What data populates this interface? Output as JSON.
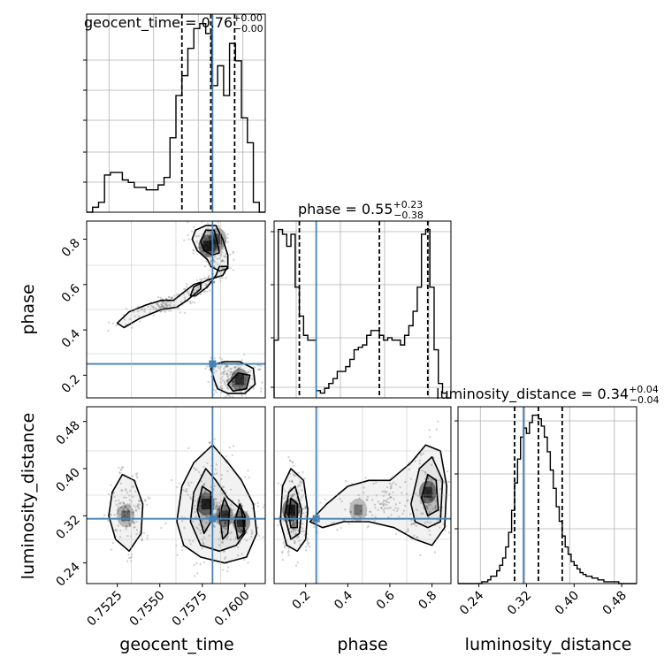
{
  "chart_data": [
    {
      "type": "histogram",
      "panel": "geocent_time marginal",
      "title_param": "geocent_time",
      "title_median": "0.76",
      "title_plus": "+0.00",
      "title_minus": "−0.00",
      "x_range": [
        0.7507,
        0.7612
      ],
      "grid": true,
      "quantiles": [
        0.7563,
        0.758,
        0.7594
      ],
      "truth": 0.7581,
      "bins": [
        0.7507,
        0.75105,
        0.7514,
        0.75175,
        0.7521,
        0.75245,
        0.7528,
        0.75315,
        0.7535,
        0.75385,
        0.7542,
        0.75455,
        0.7549,
        0.75525,
        0.7556,
        0.75595,
        0.7563,
        0.75665,
        0.757,
        0.75735,
        0.7577,
        0.75805,
        0.7584,
        0.75875,
        0.7591,
        0.75945,
        0.7598,
        0.76015,
        0.7605,
        0.76085,
        0.7612
      ],
      "counts": [
        0,
        2,
        4,
        15,
        16,
        16,
        13,
        12,
        10,
        10,
        9,
        9,
        11,
        14,
        30,
        47,
        55,
        66,
        74,
        76,
        72,
        51,
        59,
        47,
        68,
        61,
        38,
        28,
        4,
        0
      ]
    },
    {
      "type": "histogram",
      "panel": "phase marginal",
      "title_param": "phase",
      "title_median": "0.55",
      "title_plus": "+0.23",
      "title_minus": "−0.38",
      "x_range": [
        0.05,
        0.89
      ],
      "grid": true,
      "quantiles": [
        0.17,
        0.55,
        0.78
      ],
      "truth": 0.25,
      "bins": [
        0.05,
        0.07,
        0.09,
        0.11,
        0.13,
        0.15,
        0.17,
        0.19,
        0.21,
        0.23,
        0.25,
        0.27,
        0.29,
        0.31,
        0.33,
        0.35,
        0.37,
        0.39,
        0.41,
        0.43,
        0.45,
        0.47,
        0.49,
        0.51,
        0.53,
        0.55,
        0.57,
        0.59,
        0.61,
        0.63,
        0.65,
        0.67,
        0.69,
        0.71,
        0.73,
        0.75,
        0.77,
        0.79,
        0.81,
        0.83,
        0.85,
        0.87,
        0.89
      ],
      "counts": [
        24,
        70,
        68,
        63,
        68,
        46,
        34,
        26,
        24,
        24,
        3,
        2,
        4,
        6,
        8,
        11,
        11,
        13,
        16,
        20,
        21,
        22,
        26,
        28,
        28,
        26,
        24,
        25,
        24,
        24,
        22,
        26,
        30,
        36,
        46,
        68,
        70,
        46,
        20,
        6,
        2,
        0
      ]
    },
    {
      "type": "histogram",
      "panel": "luminosity_distance marginal",
      "title_param": "luminosity_distance",
      "title_median": "0.34",
      "title_plus": "+0.04",
      "title_minus": "−0.04",
      "x_range": [
        0.205,
        0.505
      ],
      "grid": true,
      "quantiles": [
        0.3,
        0.34,
        0.38
      ],
      "truth": 0.315,
      "bins": [
        0.205,
        0.21,
        0.215,
        0.22,
        0.225,
        0.23,
        0.235,
        0.24,
        0.245,
        0.25,
        0.255,
        0.26,
        0.265,
        0.27,
        0.275,
        0.28,
        0.285,
        0.29,
        0.295,
        0.3,
        0.305,
        0.31,
        0.315,
        0.32,
        0.325,
        0.33,
        0.335,
        0.34,
        0.345,
        0.35,
        0.355,
        0.36,
        0.365,
        0.37,
        0.375,
        0.38,
        0.385,
        0.39,
        0.395,
        0.4,
        0.405,
        0.41,
        0.415,
        0.42,
        0.425,
        0.43,
        0.435,
        0.44,
        0.445,
        0.45,
        0.455,
        0.46,
        0.465,
        0.47,
        0.475,
        0.48,
        0.485,
        0.49,
        0.495,
        0.5,
        0.505
      ],
      "counts": [
        0,
        0,
        0,
        0,
        0,
        0,
        0,
        0,
        1,
        1,
        2,
        4,
        4,
        7,
        10,
        14,
        20,
        28,
        40,
        55,
        68,
        80,
        85,
        82,
        88,
        92,
        92,
        90,
        86,
        80,
        72,
        62,
        52,
        42,
        34,
        26,
        20,
        16,
        12,
        10,
        8,
        6,
        5,
        4,
        4,
        3,
        3,
        2,
        2,
        1,
        1,
        1,
        1,
        1,
        0,
        0,
        0,
        0,
        0,
        0
      ]
    },
    {
      "type": "scatter",
      "panel": "phase vs geocent_time",
      "x_range": [
        0.7507,
        0.7612
      ],
      "y_range": [
        0.1,
        0.88
      ],
      "yticks": [
        "0.2",
        "0.4",
        "0.6",
        "0.8"
      ],
      "truth_x": 0.7581,
      "truth_y": 0.25,
      "grid": true,
      "contours": [
        {
          "level": "outer",
          "points": [
            [
              0.7577,
              0.86
            ],
            [
              0.7583,
              0.86
            ],
            [
              0.7587,
              0.8
            ],
            [
              0.759,
              0.73
            ],
            [
              0.759,
              0.67
            ],
            [
              0.7585,
              0.66
            ],
            [
              0.758,
              0.68
            ],
            [
              0.7578,
              0.71
            ],
            [
              0.7572,
              0.75
            ],
            [
              0.7569,
              0.8
            ],
            [
              0.7571,
              0.84
            ]
          ]
        },
        {
          "level": "inner",
          "points": [
            [
              0.7577,
              0.84
            ],
            [
              0.7582,
              0.84
            ],
            [
              0.7584,
              0.78
            ],
            [
              0.7585,
              0.74
            ],
            [
              0.7581,
              0.73
            ],
            [
              0.7576,
              0.75
            ],
            [
              0.7574,
              0.79
            ]
          ]
        },
        {
          "level": "middle",
          "points": [
            [
              0.7585,
              0.68
            ],
            [
              0.759,
              0.68
            ],
            [
              0.7587,
              0.64
            ],
            [
              0.7578,
              0.62
            ],
            [
              0.757,
              0.59
            ],
            [
              0.7568,
              0.55
            ],
            [
              0.7571,
              0.55
            ],
            [
              0.7578,
              0.59
            ],
            [
              0.7583,
              0.64
            ]
          ]
        },
        {
          "level": "outer",
          "points": [
            [
              0.7525,
              0.43
            ],
            [
              0.7532,
              0.48
            ],
            [
              0.7542,
              0.51
            ],
            [
              0.7551,
              0.53
            ],
            [
              0.7558,
              0.53
            ],
            [
              0.7563,
              0.56
            ],
            [
              0.757,
              0.6
            ],
            [
              0.7574,
              0.61
            ],
            [
              0.7574,
              0.58
            ],
            [
              0.7566,
              0.53
            ],
            [
              0.756,
              0.5
            ],
            [
              0.7551,
              0.49
            ],
            [
              0.7538,
              0.45
            ],
            [
              0.7529,
              0.41
            ]
          ]
        },
        {
          "level": "outer",
          "points": [
            [
              0.758,
              0.23
            ],
            [
              0.7583,
              0.25
            ],
            [
              0.7588,
              0.26
            ],
            [
              0.7597,
              0.26
            ],
            [
              0.7605,
              0.23
            ],
            [
              0.7606,
              0.16
            ],
            [
              0.76,
              0.12
            ],
            [
              0.759,
              0.12
            ],
            [
              0.7584,
              0.14
            ],
            [
              0.7582,
              0.18
            ]
          ]
        },
        {
          "level": "inner",
          "points": [
            [
              0.759,
              0.16
            ],
            [
              0.7596,
              0.21
            ],
            [
              0.7603,
              0.2
            ],
            [
              0.7601,
              0.14
            ],
            [
              0.7593,
              0.13
            ]
          ]
        }
      ],
      "density_peaks": [
        [
          0.7578,
          0.77,
          0.9
        ],
        [
          0.7597,
          0.18,
          0.7
        ],
        [
          0.7584,
          0.8,
          0.5
        ]
      ]
    },
    {
      "type": "scatter",
      "panel": "luminosity_distance vs geocent_time",
      "x_range": [
        0.7507,
        0.7612
      ],
      "y_range": [
        0.205,
        0.505
      ],
      "xticks": [
        "0.7525",
        "0.7550",
        "0.7575",
        "0.7600"
      ],
      "yticks": [
        "0.24",
        "0.32",
        "0.40",
        "0.48"
      ],
      "truth_x": 0.7581,
      "truth_y": 0.315,
      "grid": true,
      "contours": [
        {
          "level": "outer",
          "points": [
            [
              0.752,
              0.32
            ],
            [
              0.7522,
              0.36
            ],
            [
              0.7528,
              0.39
            ],
            [
              0.7535,
              0.38
            ],
            [
              0.754,
              0.34
            ],
            [
              0.7539,
              0.29
            ],
            [
              0.7532,
              0.26
            ],
            [
              0.7524,
              0.28
            ]
          ]
        },
        {
          "level": "outer",
          "points": [
            [
              0.756,
              0.31
            ],
            [
              0.7563,
              0.37
            ],
            [
              0.757,
              0.41
            ],
            [
              0.7581,
              0.44
            ],
            [
              0.759,
              0.41
            ],
            [
              0.7598,
              0.38
            ],
            [
              0.7605,
              0.34
            ],
            [
              0.7607,
              0.29
            ],
            [
              0.7601,
              0.25
            ],
            [
              0.7588,
              0.24
            ],
            [
              0.7574,
              0.25
            ],
            [
              0.7564,
              0.27
            ]
          ]
        },
        {
          "level": "middle",
          "points": [
            [
              0.7568,
              0.31
            ],
            [
              0.757,
              0.36
            ],
            [
              0.7577,
              0.4
            ],
            [
              0.7583,
              0.38
            ],
            [
              0.759,
              0.35
            ],
            [
              0.7598,
              0.33
            ],
            [
              0.76,
              0.29
            ],
            [
              0.7595,
              0.27
            ],
            [
              0.7585,
              0.26
            ],
            [
              0.7574,
              0.27
            ]
          ]
        },
        {
          "level": "inner",
          "points": [
            [
              0.7572,
              0.33
            ],
            [
              0.7575,
              0.37
            ],
            [
              0.758,
              0.36
            ],
            [
              0.758,
              0.31
            ],
            [
              0.7576,
              0.29
            ]
          ]
        },
        {
          "level": "inner",
          "points": [
            [
              0.7585,
              0.32
            ],
            [
              0.7588,
              0.35
            ],
            [
              0.7591,
              0.33
            ],
            [
              0.759,
              0.29
            ],
            [
              0.7587,
              0.28
            ]
          ]
        },
        {
          "level": "inner",
          "points": [
            [
              0.7594,
              0.31
            ],
            [
              0.7597,
              0.34
            ],
            [
              0.76,
              0.32
            ],
            [
              0.7599,
              0.29
            ],
            [
              0.7596,
              0.28
            ]
          ]
        }
      ],
      "density_peaks": [
        [
          0.7577,
          0.34,
          0.9
        ],
        [
          0.7588,
          0.32,
          0.6
        ],
        [
          0.7598,
          0.31,
          0.7
        ],
        [
          0.753,
          0.32,
          0.25
        ]
      ]
    },
    {
      "type": "scatter",
      "panel": "luminosity_distance vs phase",
      "x_range": [
        0.05,
        0.89
      ],
      "y_range": [
        0.205,
        0.505
      ],
      "xticks": [
        "0.2",
        "0.4",
        "0.6",
        "0.8"
      ],
      "truth_x": 0.25,
      "truth_y": 0.315,
      "grid": true,
      "contours": [
        {
          "level": "outer",
          "points": [
            [
              0.08,
              0.31
            ],
            [
              0.09,
              0.37
            ],
            [
              0.13,
              0.4
            ],
            [
              0.19,
              0.38
            ],
            [
              0.21,
              0.33
            ],
            [
              0.2,
              0.28
            ],
            [
              0.16,
              0.26
            ],
            [
              0.11,
              0.27
            ]
          ]
        },
        {
          "level": "middle",
          "points": [
            [
              0.1,
              0.32
            ],
            [
              0.12,
              0.36
            ],
            [
              0.15,
              0.37
            ],
            [
              0.18,
              0.33
            ],
            [
              0.17,
              0.29
            ],
            [
              0.13,
              0.28
            ]
          ]
        },
        {
          "level": "inner",
          "points": [
            [
              0.12,
              0.32
            ],
            [
              0.13,
              0.35
            ],
            [
              0.16,
              0.34
            ],
            [
              0.16,
              0.3
            ],
            [
              0.13,
              0.3
            ]
          ]
        },
        {
          "level": "outer",
          "points": [
            [
              0.22,
              0.31
            ],
            [
              0.3,
              0.34
            ],
            [
              0.4,
              0.37
            ],
            [
              0.5,
              0.38
            ],
            [
              0.6,
              0.38
            ],
            [
              0.7,
              0.41
            ],
            [
              0.77,
              0.44
            ],
            [
              0.84,
              0.43
            ],
            [
              0.87,
              0.37
            ],
            [
              0.86,
              0.3
            ],
            [
              0.8,
              0.27
            ],
            [
              0.72,
              0.28
            ],
            [
              0.62,
              0.3
            ],
            [
              0.5,
              0.31
            ],
            [
              0.38,
              0.31
            ],
            [
              0.28,
              0.3
            ]
          ]
        },
        {
          "level": "middle",
          "points": [
            [
              0.7,
              0.34
            ],
            [
              0.74,
              0.4
            ],
            [
              0.8,
              0.42
            ],
            [
              0.85,
              0.38
            ],
            [
              0.84,
              0.31
            ],
            [
              0.78,
              0.3
            ],
            [
              0.72,
              0.31
            ]
          ]
        },
        {
          "level": "inner",
          "points": [
            [
              0.75,
              0.35
            ],
            [
              0.78,
              0.39
            ],
            [
              0.82,
              0.38
            ],
            [
              0.83,
              0.33
            ],
            [
              0.78,
              0.32
            ]
          ]
        }
      ],
      "density_peaks": [
        [
          0.13,
          0.33,
          0.9
        ],
        [
          0.78,
          0.36,
          0.75
        ],
        [
          0.45,
          0.33,
          0.2
        ]
      ]
    }
  ],
  "axis_labels": {
    "geocent_time": "geocent_time",
    "phase": "phase",
    "luminosity_distance": "luminosity_distance"
  },
  "marginal_x_ticks": {
    "luminosity_distance": [
      "0.24",
      "0.32",
      "0.40",
      "0.48"
    ]
  },
  "colors": {
    "truth": "#4682b4",
    "hist": "#000000",
    "grid": "#b0b0b0",
    "density": "#000000"
  }
}
